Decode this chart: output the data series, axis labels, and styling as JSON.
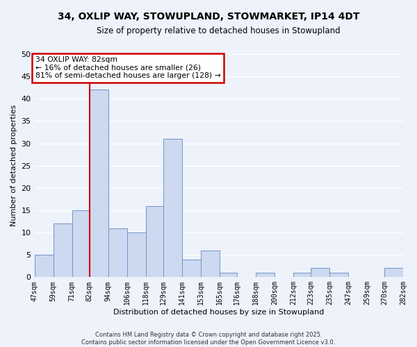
{
  "title": "34, OXLIP WAY, STOWUPLAND, STOWMARKET, IP14 4DT",
  "subtitle": "Size of property relative to detached houses in Stowupland",
  "xlabel": "Distribution of detached houses by size in Stowupland",
  "ylabel": "Number of detached properties",
  "bins": [
    47,
    59,
    71,
    82,
    94,
    106,
    118,
    129,
    141,
    153,
    165,
    176,
    188,
    200,
    212,
    223,
    235,
    247,
    259,
    270,
    282
  ],
  "counts": [
    5,
    12,
    15,
    42,
    11,
    10,
    16,
    31,
    4,
    6,
    1,
    0,
    1,
    0,
    1,
    2,
    1,
    0,
    0,
    2
  ],
  "bar_color": "#ccd9ef",
  "bar_edge_color": "#7094c8",
  "vline_x": 82,
  "vline_color": "#cc0000",
  "annotation_title": "34 OXLIP WAY: 82sqm",
  "annotation_line1": "← 16% of detached houses are smaller (26)",
  "annotation_line2": "81% of semi-detached houses are larger (128) →",
  "annotation_box_facecolor": "#ffffff",
  "annotation_box_edgecolor": "#cc0000",
  "ylim": [
    0,
    50
  ],
  "yticks": [
    0,
    5,
    10,
    15,
    20,
    25,
    30,
    35,
    40,
    45,
    50
  ],
  "tick_labels": [
    "47sqm",
    "59sqm",
    "71sqm",
    "82sqm",
    "94sqm",
    "106sqm",
    "118sqm",
    "129sqm",
    "141sqm",
    "153sqm",
    "165sqm",
    "176sqm",
    "188sqm",
    "200sqm",
    "212sqm",
    "223sqm",
    "235sqm",
    "247sqm",
    "259sqm",
    "270sqm",
    "282sqm"
  ],
  "footer_line1": "Contains HM Land Registry data © Crown copyright and database right 2025.",
  "footer_line2": "Contains public sector information licensed under the Open Government Licence v3.0.",
  "bg_color": "#eef2fb",
  "grid_color": "#ffffff",
  "title_fontsize": 10,
  "subtitle_fontsize": 8.5,
  "ylabel_fontsize": 8,
  "xlabel_fontsize": 8,
  "ytick_fontsize": 8,
  "xtick_fontsize": 7
}
